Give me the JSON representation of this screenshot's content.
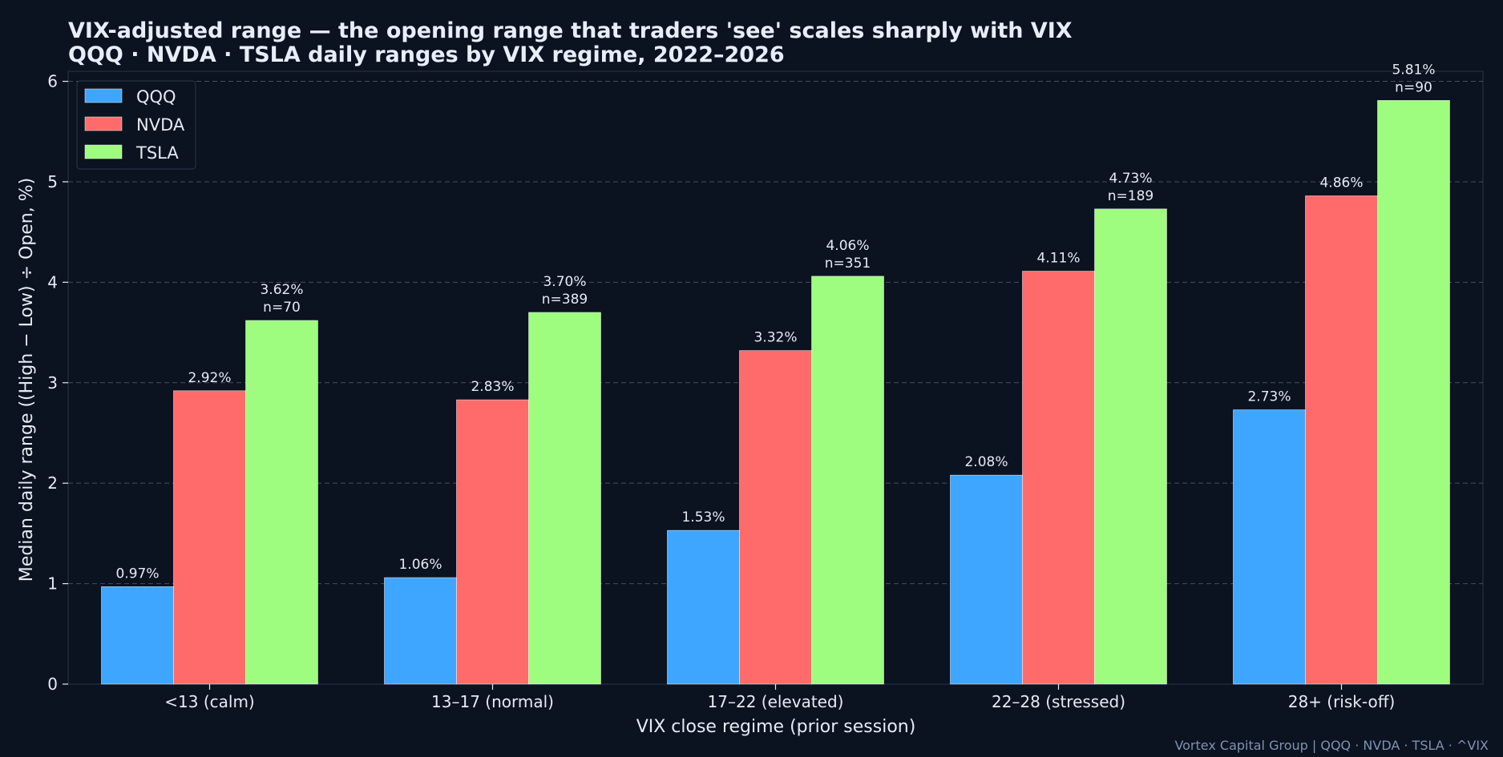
{
  "chart_data": {
    "type": "bar",
    "title": "VIX-adjusted range — the opening range that traders 'see' scales sharply with VIX",
    "subtitle": "QQQ · NVDA · TSLA daily ranges by VIX regime, 2022–2026",
    "xlabel": "VIX close regime  (prior session)",
    "ylabel": "Median daily range  ((High − Low) ÷ Open, %)",
    "ylim": [
      0,
      6.1
    ],
    "yticks": [
      0,
      1,
      2,
      3,
      4,
      5,
      6
    ],
    "grid": true,
    "legend_position": "top-left",
    "categories": [
      "<13 (calm)",
      "13–17 (normal)",
      "17–22 (elevated)",
      "22–28 (stressed)",
      "28+ (risk-off)"
    ],
    "series": [
      {
        "name": "QQQ",
        "color": "#3ea6ff",
        "values": [
          0.97,
          1.06,
          1.53,
          2.08,
          2.73
        ],
        "labels": [
          "0.97%",
          "1.06%",
          "1.53%",
          "2.08%",
          "2.73%"
        ]
      },
      {
        "name": "NVDA",
        "color": "#ff6b6b",
        "values": [
          2.92,
          2.83,
          3.32,
          4.11,
          4.86
        ],
        "labels": [
          "2.92%",
          "2.83%",
          "3.32%",
          "4.11%",
          "4.86%"
        ]
      },
      {
        "name": "TSLA",
        "color": "#9efc7f",
        "values": [
          3.62,
          3.7,
          4.06,
          4.73,
          5.81
        ],
        "labels": [
          "3.62%",
          "3.70%",
          "4.06%",
          "4.73%",
          "5.81%"
        ]
      }
    ],
    "sample_sizes": [
      "n=70",
      "n=389",
      "n=351",
      "n=189",
      "n=90"
    ]
  },
  "credit": "Vortex Capital Group  |  QQQ · NVDA · TSLA · ^VIX",
  "colors": {
    "background": "#0b1220",
    "plot_border": "#1e2b3c",
    "grid": "#5a6270",
    "text": "#e6ebf3"
  }
}
